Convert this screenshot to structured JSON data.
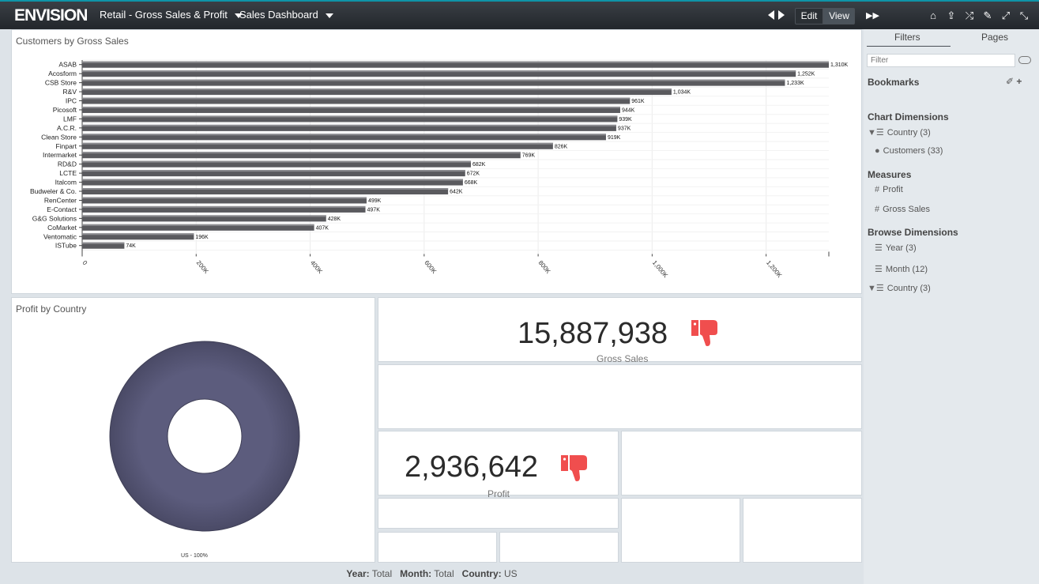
{
  "header": {
    "logo": "ENVISION",
    "project": "Retail - Gross Sales & Profit",
    "dashboard": "Sales Dashboard",
    "edit_label": "Edit",
    "view_label": "View"
  },
  "bar_panel": {
    "title": "Customers by Gross Sales"
  },
  "pie_panel": {
    "title": "Profit by Country",
    "slice_label": "US - 100%"
  },
  "kpi_sales": {
    "value": "15,887,938",
    "label": "Gross Sales"
  },
  "kpi_profit": {
    "value": "2,936,642",
    "label": "Profit"
  },
  "sidebar": {
    "tabs": [
      "Filters",
      "Pages"
    ],
    "filter_placeholder": "Filter",
    "bookmarks": "Bookmarks",
    "chart_dimensions": "Chart Dimensions",
    "chart_dim_items": [
      {
        "label": "Country",
        "count": "(3)"
      },
      {
        "label": "Customers",
        "count": "(33)"
      }
    ],
    "measures": "Measures",
    "measure_items": [
      "Profit",
      "Gross Sales"
    ],
    "browse_dimensions": "Browse Dimensions",
    "browse_items": [
      {
        "label": "Year",
        "count": "(3)"
      },
      {
        "label": "Month",
        "count": "(12)"
      },
      {
        "label": "Country",
        "count": "(3)"
      }
    ]
  },
  "footer": {
    "year_label": "Year:",
    "year_value": "Total",
    "month_label": "Month:",
    "month_value": "Total",
    "country_label": "Country:",
    "country_value": "US"
  },
  "colors": {
    "bar": "#5a5a5e",
    "donut": "#5c5c7d",
    "thumb": "#f04e4e",
    "accent": "#0e94a8"
  },
  "chart_data": [
    {
      "type": "bar",
      "orientation": "horizontal",
      "title": "Customers by Gross Sales",
      "categories": [
        "ASAB",
        "Acosform",
        "CSB Store",
        "R&V",
        "IPC",
        "Picosoft",
        "LMF",
        "A.C.R.",
        "Clean Store",
        "Finpart",
        "Intermarket",
        "RD&D",
        "LCTE",
        "Italcom",
        "Budweler & Co.",
        "RenCenter",
        "E-Contact",
        "G&G Solutions",
        "CoMarket",
        "Ventomatic",
        "ISTube"
      ],
      "values": [
        1310000,
        1252000,
        1233000,
        1034000,
        961000,
        944000,
        939000,
        937000,
        919000,
        826000,
        769000,
        682000,
        672000,
        668000,
        642000,
        499000,
        497000,
        428000,
        407000,
        196000,
        74000
      ],
      "data_labels": [
        "1,310K",
        "1,252K",
        "1,233K",
        "1,034K",
        "961K",
        "944K",
        "939K",
        "937K",
        "919K",
        "826K",
        "769K",
        "682K",
        "672K",
        "668K",
        "642K",
        "499K",
        "497K",
        "428K",
        "407K",
        "196K",
        "74K"
      ],
      "x_ticks": [
        0,
        200000,
        400000,
        600000,
        800000,
        1000000,
        1200000
      ],
      "x_tick_labels": [
        "0",
        "200K",
        "400K",
        "600K",
        "800K",
        "1,000K",
        "1,200K"
      ],
      "xlim": [
        0,
        1310000
      ]
    },
    {
      "type": "pie",
      "title": "Profit by Country",
      "categories": [
        "US"
      ],
      "values": [
        100
      ],
      "labels": [
        "US - 100%"
      ]
    }
  ]
}
